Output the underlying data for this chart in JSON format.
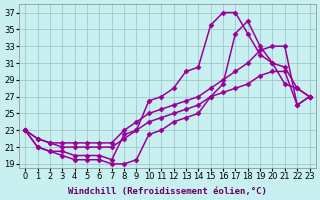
{
  "bg_color": "#c8f0f0",
  "grid_color": "#a0c8c8",
  "line_color": "#990099",
  "marker": "D",
  "markersize": 2.5,
  "linewidth": 1.1,
  "xlabel": "Windchill (Refroidissement éolien,°C)",
  "xlabel_fontsize": 6.5,
  "tick_fontsize": 6,
  "xlim": [
    -0.5,
    23.5
  ],
  "ylim": [
    18.5,
    38.0
  ],
  "xticks": [
    0,
    1,
    2,
    3,
    4,
    5,
    6,
    7,
    8,
    9,
    10,
    11,
    12,
    13,
    14,
    15,
    16,
    17,
    18,
    19,
    20,
    21,
    22,
    23
  ],
  "yticks": [
    19,
    21,
    23,
    25,
    27,
    29,
    31,
    33,
    35,
    37
  ],
  "line1_x": [
    0,
    1,
    2,
    3,
    4,
    5,
    6,
    7,
    8,
    9,
    10,
    11,
    12,
    13,
    14,
    15,
    16,
    17,
    18,
    19,
    20,
    21,
    22,
    23
  ],
  "line1_y": [
    23,
    21,
    20.5,
    20,
    19.5,
    19.5,
    19.5,
    19,
    19,
    19.5,
    22.5,
    23,
    24,
    24.5,
    25,
    27,
    28.5,
    34.5,
    36,
    33,
    31,
    30.5,
    28,
    27
  ],
  "line2_x": [
    0,
    1,
    2,
    3,
    4,
    5,
    6,
    7,
    8,
    9,
    10,
    11,
    12,
    13,
    14,
    15,
    16,
    17,
    18,
    19,
    20,
    21,
    22,
    23
  ],
  "line2_y": [
    23,
    21,
    20.5,
    20.5,
    20,
    20,
    20,
    19.5,
    22.5,
    23,
    26.5,
    27,
    28,
    30,
    30.5,
    35.5,
    37,
    37,
    34.5,
    32,
    31,
    28.5,
    28,
    27
  ],
  "line3_x": [
    0,
    1,
    2,
    3,
    4,
    5,
    6,
    7,
    8,
    9,
    10,
    11,
    12,
    13,
    14,
    15,
    16,
    17,
    18,
    19,
    20,
    21,
    22,
    23
  ],
  "line3_y": [
    23,
    22,
    21.5,
    21.5,
    21.5,
    21.5,
    21.5,
    21.5,
    23,
    24,
    25,
    25.5,
    26,
    26.5,
    27,
    28,
    29,
    30,
    31,
    32.5,
    33,
    33,
    26,
    27
  ],
  "line4_x": [
    0,
    1,
    2,
    3,
    4,
    5,
    6,
    7,
    8,
    9,
    10,
    11,
    12,
    13,
    14,
    15,
    16,
    17,
    18,
    19,
    20,
    21,
    22,
    23
  ],
  "line4_y": [
    23,
    22,
    21.5,
    21,
    21,
    21,
    21,
    21,
    22,
    23,
    24,
    24.5,
    25,
    25.5,
    26,
    27,
    27.5,
    28,
    28.5,
    29.5,
    30,
    30,
    26,
    27
  ]
}
